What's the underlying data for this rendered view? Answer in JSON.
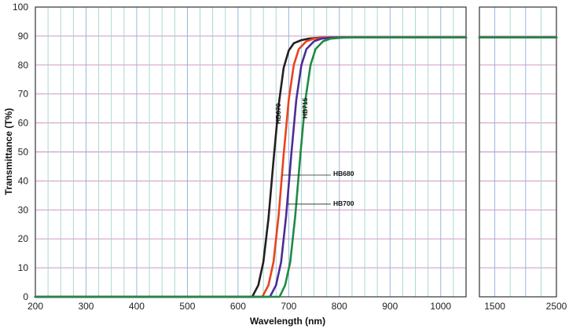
{
  "chart_data": {
    "type": "line",
    "title": "",
    "xlabel": "Wavelength (nm)",
    "ylabel": "Transmittance (T%)",
    "ylim": [
      0,
      100
    ],
    "yticks": [
      "0",
      "10",
      "20",
      "30",
      "40",
      "50",
      "60",
      "70",
      "80",
      "90",
      "100"
    ],
    "panels": [
      {
        "xlim": [
          200,
          1050
        ],
        "xticks": [
          "200",
          "300",
          "400",
          "500",
          "600",
          "700",
          "800",
          "900",
          "1000"
        ]
      },
      {
        "xlim": [
          1250,
          2500
        ],
        "xticks": [
          "1500",
          "2500"
        ]
      }
    ],
    "grid": true,
    "series": [
      {
        "name": "HB670",
        "color": "#231f20",
        "x": [
          200,
          628,
          640,
          650,
          660,
          670,
          680,
          690,
          700,
          710,
          725,
          740,
          760,
          780,
          800,
          1050,
          1250,
          2500
        ],
        "y": [
          0,
          0,
          4,
          12,
          27,
          47,
          66,
          79,
          85,
          87.5,
          88.6,
          89.1,
          89.4,
          89.5,
          89.5,
          89.5,
          89.5,
          89.5
        ]
      },
      {
        "name": "HB680",
        "color": "#e8431e",
        "x": [
          200,
          648,
          660,
          670,
          680,
          690,
          700,
          710,
          720,
          735,
          750,
          770,
          790,
          810,
          1050,
          1250,
          2500
        ],
        "y": [
          0,
          0,
          4,
          12,
          28,
          49,
          68,
          80,
          85.5,
          88.2,
          89.1,
          89.4,
          89.5,
          89.5,
          89.5,
          89.5,
          89.5
        ]
      },
      {
        "name": "HB700",
        "color": "#4a2d96",
        "x": [
          200,
          663,
          675,
          685,
          695,
          705,
          715,
          725,
          735,
          750,
          765,
          785,
          805,
          825,
          1050,
          1250,
          2500
        ],
        "y": [
          0,
          0,
          4,
          12,
          28,
          49,
          68,
          80,
          85.5,
          88.2,
          89.1,
          89.4,
          89.5,
          89.5,
          89.5,
          89.5,
          89.5
        ]
      },
      {
        "name": "HB715",
        "color": "#1f8a45",
        "x": [
          200,
          682,
          693,
          703,
          713,
          723,
          733,
          743,
          753,
          768,
          783,
          805,
          825,
          845,
          1050,
          1250,
          2500
        ],
        "y": [
          0,
          0,
          4,
          12,
          28,
          49,
          68,
          80,
          85.5,
          88.2,
          89.1,
          89.4,
          89.5,
          89.5,
          89.5,
          89.5,
          89.5
        ]
      }
    ],
    "annotations": [
      {
        "series": "HB670",
        "text": "HB670"
      },
      {
        "series": "HB715",
        "text": "HB715"
      },
      {
        "series": "HB680",
        "text": "HB680"
      },
      {
        "series": "HB700",
        "text": "HB700"
      }
    ]
  }
}
